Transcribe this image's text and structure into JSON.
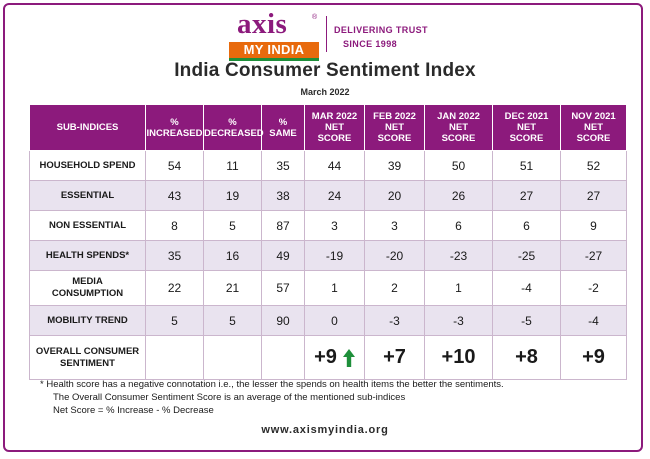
{
  "brand": {
    "logo_top": "axis",
    "logo_reg": "®",
    "logo_bottom": "MY INDIA"
  },
  "tagline": {
    "line1": "DELIVERING TRUST",
    "line2": "SINCE 1998"
  },
  "title": "India Consumer Sentiment Index",
  "subtitle": "March 2022",
  "table": {
    "headers": [
      [
        "SUB-INDICES"
      ],
      [
        "%",
        "INCREASED"
      ],
      [
        "%",
        "DECREASED"
      ],
      [
        "%",
        "SAME"
      ],
      [
        "MAR 2022",
        "NET",
        "SCORE"
      ],
      [
        "FEB 2022",
        "NET",
        "SCORE"
      ],
      [
        "JAN 2022",
        "NET",
        "SCORE"
      ],
      [
        "DEC 2021",
        "NET",
        "SCORE"
      ],
      [
        "NOV 2021",
        "NET",
        "SCORE"
      ]
    ],
    "rows": [
      {
        "label": [
          "HOUSEHOLD SPEND"
        ],
        "values": [
          "54",
          "11",
          "35",
          "44",
          "39",
          "50",
          "51",
          "52"
        ]
      },
      {
        "label": [
          "ESSENTIAL"
        ],
        "values": [
          "43",
          "19",
          "38",
          "24",
          "20",
          "26",
          "27",
          "27"
        ]
      },
      {
        "label": [
          "NON  ESSENTIAL"
        ],
        "values": [
          "8",
          "5",
          "87",
          "3",
          "3",
          "6",
          "6",
          "9"
        ]
      },
      {
        "label": [
          "HEALTH SPENDS*"
        ],
        "values": [
          "35",
          "16",
          "49",
          "-19",
          "-20",
          "-23",
          "-25",
          "-27"
        ]
      },
      {
        "label": [
          "MEDIA",
          "CONSUMPTION"
        ],
        "values": [
          "22",
          "21",
          "57",
          "1",
          "2",
          "1",
          "-4",
          "-2"
        ]
      },
      {
        "label": [
          "MOBILITY TREND"
        ],
        "values": [
          "5",
          "5",
          "90",
          "0",
          "-3",
          "-3",
          "-5",
          "-4"
        ]
      }
    ],
    "overall": {
      "label": [
        "OVERALL CONSUMER",
        "SENTIMENT"
      ],
      "values": [
        "+9",
        "+7",
        "+10",
        "+8",
        "+9"
      ],
      "trend": "up",
      "trend_icon": "up-arrow-icon",
      "trend_color": "#1e8f3a"
    }
  },
  "notes": {
    "n1": "*  Health score has a negative connotation i.e., the lesser the spends on health items the better the sentiments.",
    "n2": "The Overall Consumer Sentiment Score is an average of the mentioned sub-indices",
    "n3": "Net Score = % Increase - % Decrease"
  },
  "website": "www.axismyindia.org",
  "colors": {
    "brand_purple": "#8c1a7c",
    "brand_orange": "#e86a0d",
    "trend_green": "#1e8f3a",
    "row_alt": "#e9e3ef"
  }
}
